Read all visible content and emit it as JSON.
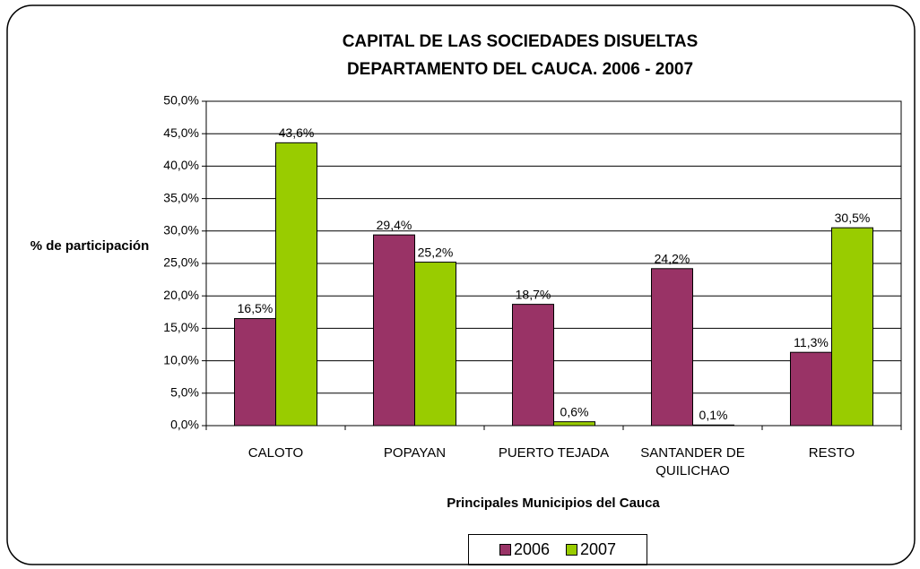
{
  "chart_data": {
    "type": "bar",
    "title": [
      "CAPITAL DE LAS SOCIEDADES DISUELTAS",
      "DEPARTAMENTO DEL CAUCA. 2006 - 2007"
    ],
    "y_label": "% de participación",
    "x_label": "Principales Municipios del Cauca",
    "categories": [
      "CALOTO",
      "POPAYAN",
      "PUERTO TEJADA",
      "SANTANDER DE QUILICHAO",
      "RESTO"
    ],
    "series": [
      {
        "name": "2006",
        "color": "#993366",
        "values": [
          16.5,
          29.4,
          18.7,
          24.2,
          11.3
        ],
        "value_labels": [
          "16,5%",
          "29,4%",
          "18,7%",
          "24,2%",
          "11,3%"
        ]
      },
      {
        "name": "2007",
        "color": "#99cc00",
        "values": [
          43.6,
          25.2,
          0.6,
          0.1,
          30.5
        ],
        "value_labels": [
          "43,6%",
          "25,2%",
          "0,6%",
          "0,1%",
          "30,5%"
        ]
      }
    ],
    "ylim": [
      0,
      50
    ],
    "yticks": [
      {
        "value": 0,
        "label": "0,0%"
      },
      {
        "value": 5,
        "label": "5,0%"
      },
      {
        "value": 10,
        "label": "10,0%"
      },
      {
        "value": 15,
        "label": "15,0%"
      },
      {
        "value": 20,
        "label": "20,0%"
      },
      {
        "value": 25,
        "label": "25,0%"
      },
      {
        "value": 30,
        "label": "30,0%"
      },
      {
        "value": 35,
        "label": "35,0%"
      },
      {
        "value": 40,
        "label": "40,0%"
      },
      {
        "value": 45,
        "label": "45,0%"
      },
      {
        "value": 50,
        "label": "50,0%"
      }
    ],
    "grid": true,
    "legend": "bottom"
  }
}
